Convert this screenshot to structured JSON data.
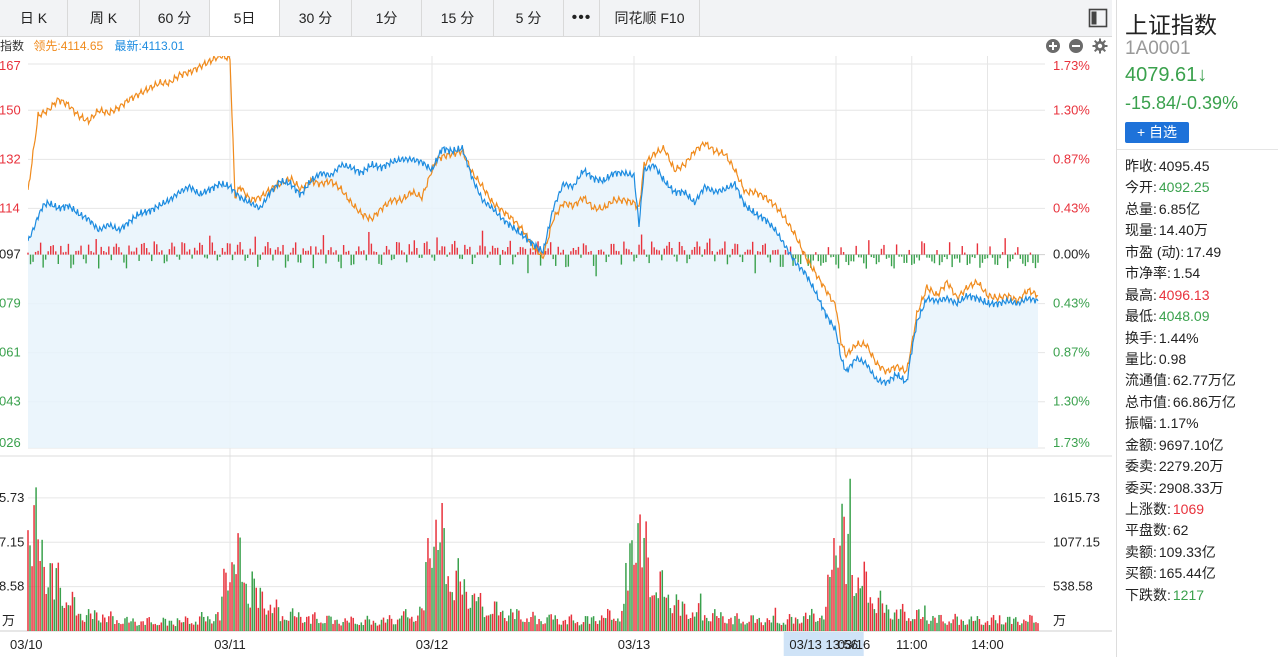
{
  "tabs": [
    {
      "label": "日 K"
    },
    {
      "label": "周 K"
    },
    {
      "label": "60 分"
    },
    {
      "label": "5日"
    },
    {
      "label": "30 分"
    },
    {
      "label": "1分"
    },
    {
      "label": "15 分"
    },
    {
      "label": "5 分"
    },
    {
      "label": "•••"
    },
    {
      "label": "同花顺 F10"
    }
  ],
  "active_tab": "5日",
  "info": {
    "index_label": "指数",
    "lead_label": "领先:4114.65",
    "latest_label": "最新:4113.01"
  },
  "stock": {
    "name": "上证指数",
    "code": "1A0001",
    "price": "4079.61",
    "change": "-15.84/-0.39%",
    "add_label": "+ 自选"
  },
  "stats": [
    {
      "label": "昨收:",
      "value": "4095.45",
      "color": "#222222"
    },
    {
      "label": "今开:",
      "value": "4092.25",
      "color": "#3aa14d"
    },
    {
      "label": "总量:",
      "value": "6.85亿",
      "color": "#222222"
    },
    {
      "label": "现量:",
      "value": "14.40万",
      "color": "#222222"
    },
    {
      "label": "市盈 (动):",
      "value": "17.49",
      "color": "#222222"
    },
    {
      "label": "市净率:",
      "value": "1.54",
      "color": "#222222"
    },
    {
      "label": "最高:",
      "value": "4096.13",
      "color": "#e8323c"
    },
    {
      "label": "最低:",
      "value": "4048.09",
      "color": "#3aa14d"
    },
    {
      "label": "换手:",
      "value": "1.44%",
      "color": "#222222"
    },
    {
      "label": "量比:",
      "value": "0.98",
      "color": "#222222"
    },
    {
      "label": "流通值:",
      "value": "62.77万亿",
      "color": "#222222"
    },
    {
      "label": "总市值:",
      "value": "66.86万亿",
      "color": "#222222"
    },
    {
      "label": "振幅:",
      "value": "1.17%",
      "color": "#222222"
    },
    {
      "label": "金额:",
      "value": "9697.10亿",
      "color": "#222222"
    },
    {
      "label": "委卖:",
      "value": "2279.20万",
      "color": "#222222"
    },
    {
      "label": "委买:",
      "value": "2908.33万",
      "color": "#222222"
    },
    {
      "label": "上涨数:",
      "value": "1069",
      "color": "#e8323c"
    },
    {
      "label": "平盘数:",
      "value": "62",
      "color": "#222222"
    },
    {
      "label": "卖额:",
      "value": "109.33亿",
      "color": "#222222"
    },
    {
      "label": "买额:",
      "value": "165.44亿",
      "color": "#222222"
    },
    {
      "label": "下跌数:",
      "value": "1217",
      "color": "#3aa14d"
    }
  ],
  "colors": {
    "up": "#e8323c",
    "down": "#3aa14d",
    "price_line": "#1d8ce0",
    "lead_line": "#f08b1d",
    "area_fill": "#e8f3fc",
    "grid": "#e6e6e6",
    "crosshair_label_bg": "#cfe3f7"
  },
  "chart_data": {
    "type": "line",
    "title": "",
    "prev_close": 4097,
    "ylim": [
      4026,
      4167
    ],
    "price_axis": {
      "left_ticks": [
        "167",
        "150",
        "132",
        "114",
        "097",
        "079",
        "061",
        "043",
        "026"
      ],
      "right_ticks": [
        "1.73%",
        "1.30%",
        "0.87%",
        "0.43%",
        "0.00%",
        "0.43%",
        "0.87%",
        "1.30%",
        "1.73%"
      ],
      "tick_values": [
        4167,
        4150,
        4132,
        4114,
        4097,
        4079,
        4061,
        4043,
        4026
      ]
    },
    "volume_axis": {
      "left_ticks": [
        "5.73",
        "7.15",
        "8.58",
        "万"
      ],
      "right_ticks": [
        "1615.73",
        "1077.15",
        "538.58",
        "万"
      ],
      "tick_values": [
        1615.73,
        1077.15,
        538.58
      ],
      "ylim": [
        0,
        2100
      ]
    },
    "x_labels": [
      "03/10",
      "03/11",
      "03/12",
      "03/13",
      "03/16",
      "11:00",
      "14:00"
    ],
    "x_label_positions": [
      0,
      0.2,
      0.4,
      0.6,
      0.8,
      0.875,
      0.95
    ],
    "crosshair_label": "03/13 13:56",
    "crosshair_position": 0.771,
    "series": [
      {
        "name": "最新",
        "x": [
          0,
          0.005,
          0.01,
          0.015,
          0.02,
          0.03,
          0.04,
          0.05,
          0.06,
          0.07,
          0.08,
          0.09,
          0.1,
          0.11,
          0.12,
          0.13,
          0.14,
          0.15,
          0.16,
          0.17,
          0.18,
          0.19,
          0.2,
          0.21,
          0.22,
          0.23,
          0.24,
          0.25,
          0.26,
          0.27,
          0.28,
          0.29,
          0.3,
          0.31,
          0.32,
          0.33,
          0.34,
          0.35,
          0.36,
          0.37,
          0.38,
          0.39,
          0.4,
          0.405,
          0.41,
          0.42,
          0.43,
          0.44,
          0.45,
          0.46,
          0.47,
          0.48,
          0.49,
          0.5,
          0.51,
          0.52,
          0.53,
          0.54,
          0.55,
          0.56,
          0.57,
          0.58,
          0.59,
          0.6,
          0.605,
          0.61,
          0.62,
          0.63,
          0.64,
          0.65,
          0.66,
          0.67,
          0.68,
          0.69,
          0.7,
          0.71,
          0.72,
          0.73,
          0.74,
          0.75,
          0.76,
          0.77,
          0.78,
          0.79,
          0.8,
          0.805,
          0.81,
          0.82,
          0.83,
          0.84,
          0.85,
          0.86,
          0.87,
          0.875,
          0.88,
          0.89,
          0.9,
          0.91,
          0.92,
          0.93,
          0.94,
          0.95,
          0.96,
          0.97,
          0.98,
          0.99,
          1.0
        ],
        "values": [
          4102,
          4106,
          4111,
          4115,
          4116,
          4114,
          4115,
          4112,
          4110,
          4106,
          4108,
          4106,
          4109,
          4112,
          4113,
          4115,
          4117,
          4120,
          4122,
          4119,
          4121,
          4123,
          4122,
          4118,
          4116,
          4114,
          4120,
          4124,
          4123,
          4119,
          4124,
          4127,
          4126,
          4130,
          4129,
          4127,
          4130,
          4129,
          4131,
          4132,
          4132,
          4131,
          4128,
          4132,
          4136,
          4135,
          4136,
          4125,
          4117,
          4114,
          4110,
          4107,
          4104,
          4101,
          4098,
          4114,
          4123,
          4122,
          4128,
          4125,
          4124,
          4127,
          4127,
          4126,
          4108,
          4128,
          4130,
          4124,
          4120,
          4120,
          4116,
          4122,
          4120,
          4121,
          4123,
          4115,
          4112,
          4110,
          4106,
          4100,
          4094,
          4090,
          4083,
          4075,
          4069,
          4059,
          4054,
          4059,
          4057,
          4051,
          4050,
          4053,
          4050,
          4062,
          4072,
          4081,
          4080,
          4081,
          4079,
          4082,
          4081,
          4079,
          4079,
          4080,
          4079,
          4081,
          4080
        ]
      },
      {
        "name": "领先",
        "x": [
          0,
          0.005,
          0.01,
          0.02,
          0.03,
          0.04,
          0.05,
          0.06,
          0.07,
          0.08,
          0.09,
          0.1,
          0.11,
          0.12,
          0.13,
          0.14,
          0.15,
          0.16,
          0.17,
          0.18,
          0.19,
          0.2,
          0.205,
          0.21,
          0.22,
          0.23,
          0.24,
          0.25,
          0.26,
          0.27,
          0.28,
          0.29,
          0.3,
          0.31,
          0.32,
          0.33,
          0.34,
          0.35,
          0.36,
          0.37,
          0.38,
          0.39,
          0.4,
          0.405,
          0.41,
          0.42,
          0.43,
          0.44,
          0.45,
          0.46,
          0.47,
          0.48,
          0.49,
          0.5,
          0.51,
          0.52,
          0.53,
          0.54,
          0.55,
          0.56,
          0.57,
          0.58,
          0.59,
          0.6,
          0.605,
          0.61,
          0.62,
          0.63,
          0.64,
          0.65,
          0.66,
          0.67,
          0.68,
          0.69,
          0.7,
          0.71,
          0.72,
          0.73,
          0.74,
          0.75,
          0.76,
          0.77,
          0.78,
          0.79,
          0.8,
          0.805,
          0.81,
          0.82,
          0.83,
          0.84,
          0.85,
          0.86,
          0.87,
          0.875,
          0.88,
          0.89,
          0.9,
          0.91,
          0.92,
          0.93,
          0.94,
          0.95,
          0.96,
          0.97,
          0.98,
          0.99,
          1.0
        ],
        "values": [
          4120,
          4134,
          4148,
          4150,
          4154,
          4152,
          4148,
          4146,
          4150,
          4149,
          4151,
          4154,
          4156,
          4158,
          4160,
          4160,
          4163,
          4164,
          4166,
          4168,
          4170,
          4169,
          4118,
          4122,
          4117,
          4118,
          4121,
          4123,
          4125,
          4121,
          4124,
          4123,
          4124,
          4121,
          4116,
          4112,
          4110,
          4114,
          4117,
          4117,
          4120,
          4118,
          4128,
          4132,
          4133,
          4134,
          4135,
          4127,
          4122,
          4116,
          4113,
          4110,
          4106,
          4100,
          4096,
          4110,
          4116,
          4115,
          4118,
          4114,
          4114,
          4117,
          4117,
          4116,
          4114,
          4130,
          4134,
          4136,
          4128,
          4130,
          4135,
          4138,
          4135,
          4134,
          4128,
          4120,
          4120,
          4118,
          4115,
          4110,
          4104,
          4096,
          4090,
          4084,
          4078,
          4065,
          4060,
          4064,
          4064,
          4057,
          4054,
          4056,
          4054,
          4064,
          4075,
          4085,
          4082,
          4087,
          4081,
          4085,
          4087,
          4082,
          4081,
          4082,
          4080,
          4084,
          4082
        ]
      }
    ],
    "volume_profile": {
      "x": [
        0,
        0.02,
        0.05,
        0.1,
        0.15,
        0.19,
        0.2,
        0.22,
        0.25,
        0.3,
        0.35,
        0.39,
        0.4,
        0.42,
        0.45,
        0.5,
        0.55,
        0.59,
        0.6,
        0.62,
        0.65,
        0.7,
        0.75,
        0.79,
        0.8,
        0.82,
        0.85,
        0.9,
        0.95,
        1.0
      ],
      "values": [
        1700,
        900,
        260,
        140,
        130,
        220,
        1250,
        600,
        250,
        150,
        140,
        260,
        1650,
        800,
        340,
        180,
        150,
        260,
        1650,
        700,
        300,
        170,
        150,
        260,
        1650,
        800,
        300,
        170,
        150,
        160
      ]
    }
  }
}
